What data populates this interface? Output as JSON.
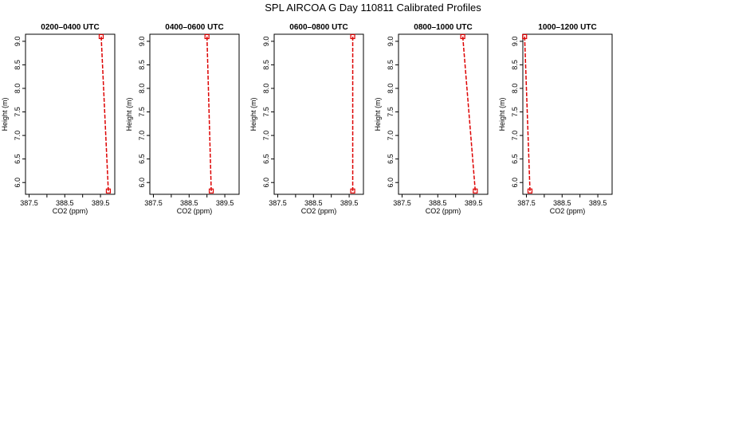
{
  "figure_title": "SPL AIRCOA G  Day 110811  Calibrated Profiles",
  "colors": {
    "profile": "#dd0000",
    "axes": "#000000"
  },
  "chart_data": [
    {
      "type": "line",
      "title": "0200–0400 UTC",
      "xlabel": "CO2 (ppm)",
      "ylabel": "Height (m)",
      "xlim": [
        387.4,
        389.9
      ],
      "ylim": [
        5.75,
        9.15
      ],
      "xticks": [
        "387.5",
        "388.5",
        "389.5"
      ],
      "xtick_values": [
        387.5,
        388.0,
        388.5,
        389.0,
        389.5
      ],
      "yticks": [
        "6.0",
        "6.5",
        "7.0",
        "7.5",
        "8.0",
        "8.5",
        "9.0"
      ],
      "ytick_values": [
        6.0,
        6.5,
        7.0,
        7.5,
        8.0,
        8.5,
        9.0
      ],
      "x": [
        389.52,
        389.72
      ],
      "y": [
        9.1,
        5.82
      ]
    },
    {
      "type": "line",
      "title": "0400–0600 UTC",
      "xlabel": "CO2 (ppm)",
      "ylabel": "Height (m)",
      "xlim": [
        387.4,
        389.9
      ],
      "ylim": [
        5.75,
        9.15
      ],
      "xticks": [
        "387.5",
        "388.5",
        "389.5"
      ],
      "xtick_values": [
        387.5,
        388.0,
        388.5,
        389.0,
        389.5
      ],
      "yticks": [
        "6.0",
        "6.5",
        "7.0",
        "7.5",
        "8.0",
        "8.5",
        "9.0"
      ],
      "ytick_values": [
        6.0,
        6.5,
        7.0,
        7.5,
        8.0,
        8.5,
        9.0
      ],
      "x": [
        389.0,
        389.12
      ],
      "y": [
        9.1,
        5.82
      ]
    },
    {
      "type": "line",
      "title": "0600–0800 UTC",
      "xlabel": "CO2 (ppm)",
      "ylabel": "Height (m)",
      "xlim": [
        387.4,
        389.9
      ],
      "ylim": [
        5.75,
        9.15
      ],
      "xticks": [
        "387.5",
        "388.5",
        "389.5"
      ],
      "xtick_values": [
        387.5,
        388.0,
        388.5,
        389.0,
        389.5
      ],
      "yticks": [
        "6.0",
        "6.5",
        "7.0",
        "7.5",
        "8.0",
        "8.5",
        "9.0"
      ],
      "ytick_values": [
        6.0,
        6.5,
        7.0,
        7.5,
        8.0,
        8.5,
        9.0
      ],
      "x": [
        389.6,
        389.6
      ],
      "y": [
        9.1,
        5.82
      ]
    },
    {
      "type": "line",
      "title": "0800–1000 UTC",
      "xlabel": "CO2 (ppm)",
      "ylabel": "Height (m)",
      "xlim": [
        387.4,
        389.9
      ],
      "ylim": [
        5.75,
        9.15
      ],
      "xticks": [
        "387.5",
        "388.5",
        "389.5"
      ],
      "xtick_values": [
        387.5,
        388.0,
        388.5,
        389.0,
        389.5
      ],
      "yticks": [
        "6.0",
        "6.5",
        "7.0",
        "7.5",
        "8.0",
        "8.5",
        "9.0"
      ],
      "ytick_values": [
        6.0,
        6.5,
        7.0,
        7.5,
        8.0,
        8.5,
        9.0
      ],
      "x": [
        389.2,
        389.55
      ],
      "y": [
        9.1,
        5.82
      ]
    },
    {
      "type": "line",
      "title": "1000–1200 UTC",
      "xlabel": "CO2 (ppm)",
      "ylabel": "Height (m)",
      "xlim": [
        387.4,
        389.9
      ],
      "ylim": [
        5.75,
        9.15
      ],
      "xticks": [
        "387.5",
        "388.5",
        "389.5"
      ],
      "xtick_values": [
        387.5,
        388.0,
        388.5,
        389.0,
        389.5
      ],
      "yticks": [
        "6.0",
        "6.5",
        "7.0",
        "7.5",
        "8.0",
        "8.5",
        "9.0"
      ],
      "ytick_values": [
        6.0,
        6.5,
        7.0,
        7.5,
        8.0,
        8.5,
        9.0
      ],
      "x": [
        387.45,
        387.6
      ],
      "y": [
        9.1,
        5.82
      ]
    }
  ]
}
